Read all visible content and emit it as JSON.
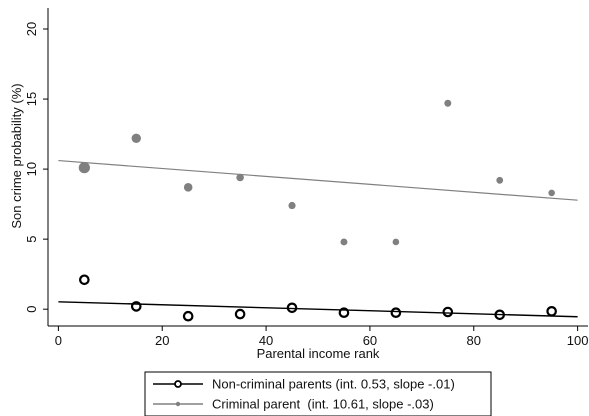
{
  "chart_data": {
    "type": "scatter",
    "xlabel": "Parental income rank",
    "ylabel": "Son crime probability (%)",
    "xlim": [
      -2,
      102
    ],
    "ylim": [
      -1.2,
      21.5
    ],
    "x_ticks": [
      0,
      20,
      40,
      60,
      80,
      100
    ],
    "y_ticks": [
      0,
      5,
      10,
      15,
      20
    ],
    "legend_position": "bottom",
    "series": [
      {
        "name": "Non-criminal parents (int. 0.53, slope -.01)",
        "color": "#000000",
        "marker": "hollow-circle",
        "points": [
          {
            "x": 5,
            "y": 2.1
          },
          {
            "x": 15,
            "y": 0.2
          },
          {
            "x": 25,
            "y": -0.5
          },
          {
            "x": 35,
            "y": -0.35
          },
          {
            "x": 45,
            "y": 0.1
          },
          {
            "x": 55,
            "y": -0.25
          },
          {
            "x": 65,
            "y": -0.25
          },
          {
            "x": 75,
            "y": -0.2
          },
          {
            "x": 85,
            "y": -0.4
          },
          {
            "x": 95,
            "y": -0.15
          }
        ],
        "fit": {
          "intercept": 0.53,
          "slope": -0.0107
        }
      },
      {
        "name": "Criminal parent  (int. 10.61, slope -.03)",
        "color": "#808080",
        "marker": "filled-circle",
        "points": [
          {
            "x": 5,
            "y": 10.1,
            "weight": 1.0
          },
          {
            "x": 15,
            "y": 12.2,
            "weight": 0.6
          },
          {
            "x": 25,
            "y": 8.7,
            "weight": 0.45
          },
          {
            "x": 35,
            "y": 9.4,
            "weight": 0.3
          },
          {
            "x": 45,
            "y": 7.4,
            "weight": 0.25
          },
          {
            "x": 55,
            "y": 4.8,
            "weight": 0.22
          },
          {
            "x": 65,
            "y": 4.8,
            "weight": 0.18
          },
          {
            "x": 75,
            "y": 14.7,
            "weight": 0.22
          },
          {
            "x": 85,
            "y": 9.2,
            "weight": 0.2
          },
          {
            "x": 95,
            "y": 8.3,
            "weight": 0.18
          }
        ],
        "fit": {
          "intercept": 10.61,
          "slope": -0.0283
        }
      }
    ]
  }
}
